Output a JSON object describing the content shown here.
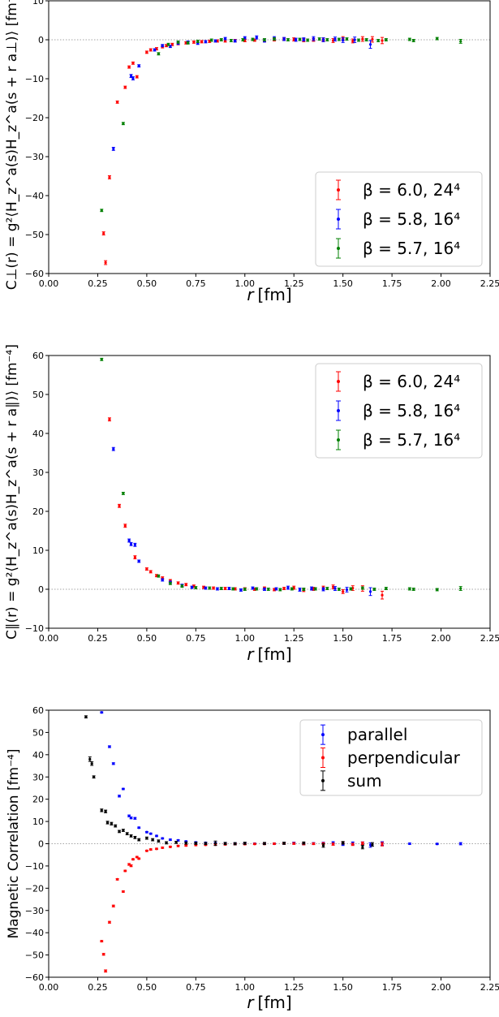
{
  "chart_data": [
    {
      "id": "perp",
      "type": "scatter",
      "xlabel": "r",
      "xlabel_unit": "[fm]",
      "ylabel": "C⊥(r) = g²⟨H_z^a(s)H_z^a(s + r a⊥)⟩ [fm⁻⁴]",
      "xlim": [
        0,
        2.25
      ],
      "ylim": [
        -60,
        10
      ],
      "xticks": [
        "0.00",
        "0.25",
        "0.50",
        "0.75",
        "1.00",
        "1.25",
        "1.50",
        "1.75",
        "2.00",
        "2.25"
      ],
      "yticks": [
        "−60",
        "−50",
        "−40",
        "−30",
        "−20",
        "−10",
        "0",
        "10"
      ],
      "zero_line": true,
      "legend": {
        "placement": "lower-right"
      },
      "series": [
        {
          "name": "β = 6.0, 24⁴",
          "color": "#ff0000",
          "x": [
            0.28,
            0.29,
            0.31,
            0.35,
            0.39,
            0.41,
            0.43,
            0.45,
            0.5,
            0.52,
            0.55,
            0.58,
            0.6,
            0.63,
            0.66,
            0.7,
            0.74,
            0.78,
            0.82,
            0.86,
            0.9,
            0.95,
            1.0,
            1.05,
            1.1,
            1.15,
            1.2,
            1.25,
            1.3,
            1.35,
            1.4,
            1.45,
            1.5,
            1.55,
            1.6,
            1.65,
            1.7
          ],
          "y": [
            -49.7,
            -57.2,
            -35.3,
            -16,
            -12.2,
            -7,
            -6,
            -9.5,
            -3.2,
            -2.6,
            -2.3,
            -1.8,
            -1.5,
            -1.2,
            -1.0,
            -0.8,
            -0.6,
            -0.5,
            -0.4,
            -0.3,
            -0.3,
            -0.2,
            -0.2,
            -0.1,
            -0.1,
            0.0,
            0.1,
            0.1,
            -0.1,
            0.0,
            0.1,
            -0.2,
            0.3,
            -0.3,
            0.2,
            0.1,
            -0.2
          ],
          "err": [
            0.4,
            0.5,
            0.4,
            0.3,
            0.3,
            0.3,
            0.3,
            0.3,
            0.3,
            0.3,
            0.3,
            0.3,
            0.3,
            0.3,
            0.3,
            0.3,
            0.3,
            0.3,
            0.3,
            0.3,
            0.3,
            0.3,
            0.3,
            0.3,
            0.3,
            0.3,
            0.3,
            0.4,
            0.4,
            0.4,
            0.4,
            0.5,
            0.5,
            0.5,
            0.6,
            0.7,
            0.8
          ]
        },
        {
          "name": "β = 5.8, 16⁴",
          "color": "#0000ff",
          "x": [
            0.33,
            0.42,
            0.43,
            0.46,
            0.54,
            0.58,
            0.62,
            0.66,
            0.71,
            0.76,
            0.8,
            0.85,
            0.9,
            0.95,
            1.0,
            1.06,
            1.1,
            1.15,
            1.2,
            1.26,
            1.3,
            1.35,
            1.4,
            1.46,
            1.5,
            1.56,
            1.64
          ],
          "y": [
            -28,
            -9.3,
            -9.9,
            -6.7,
            -2.6,
            -1.5,
            -1.7,
            -0.9,
            -0.6,
            -0.9,
            -0.5,
            -0.3,
            0.3,
            -0.3,
            0.5,
            0.6,
            -0.2,
            0.4,
            0.2,
            0.0,
            0.1,
            0.3,
            0.0,
            0.2,
            -0.1,
            0.0,
            -1.2
          ],
          "err": [
            0.4,
            0.4,
            0.4,
            0.3,
            0.3,
            0.3,
            0.3,
            0.3,
            0.3,
            0.3,
            0.3,
            0.3,
            0.3,
            0.3,
            0.3,
            0.4,
            0.4,
            0.4,
            0.4,
            0.4,
            0.4,
            0.5,
            0.5,
            0.5,
            0.6,
            0.7,
            1.0
          ]
        },
        {
          "name": "β = 5.7, 16⁴",
          "color": "#008000",
          "x": [
            0.27,
            0.38,
            0.56,
            0.61,
            0.66,
            0.71,
            0.76,
            0.83,
            0.88,
            0.93,
            0.99,
            1.04,
            1.1,
            1.15,
            1.22,
            1.28,
            1.32,
            1.38,
            1.42,
            1.48,
            1.52,
            1.58,
            1.62,
            1.68,
            1.72,
            1.84,
            1.86,
            1.98,
            2.1
          ],
          "y": [
            -43.8,
            -21.5,
            -3.6,
            -1.2,
            -0.6,
            -0.8,
            -0.4,
            -0.1,
            0.0,
            -0.2,
            0.0,
            0.1,
            0.0,
            0.2,
            0.0,
            0.1,
            -0.1,
            0.2,
            0.0,
            0.1,
            0.2,
            -0.1,
            0.0,
            -0.2,
            0.0,
            0.1,
            -0.2,
            0.3,
            -0.4
          ],
          "err": [
            0.3,
            0.3,
            0.3,
            0.3,
            0.3,
            0.3,
            0.3,
            0.3,
            0.3,
            0.3,
            0.3,
            0.3,
            0.3,
            0.3,
            0.3,
            0.3,
            0.3,
            0.3,
            0.3,
            0.3,
            0.3,
            0.3,
            0.3,
            0.3,
            0.3,
            0.3,
            0.3,
            0.3,
            0.5
          ]
        }
      ]
    },
    {
      "id": "par",
      "type": "scatter",
      "xlabel": "r",
      "xlabel_unit": "[fm]",
      "ylabel": "C∥(r) = g²⟨H_z^a(s)H_z^a(s + r a∥)⟩ [fm⁻⁴]",
      "xlim": [
        0,
        2.25
      ],
      "ylim": [
        -10,
        60
      ],
      "xticks": [
        "0.00",
        "0.25",
        "0.50",
        "0.75",
        "1.00",
        "1.25",
        "1.50",
        "1.75",
        "2.00",
        "2.25"
      ],
      "yticks": [
        "−10",
        "0",
        "10",
        "20",
        "30",
        "40",
        "50",
        "60"
      ],
      "zero_line": true,
      "legend": {
        "placement": "upper-right"
      },
      "series": [
        {
          "name": "β = 6.0, 24⁴",
          "color": "#ff0000",
          "x": [
            0.31,
            0.36,
            0.39,
            0.44,
            0.5,
            0.52,
            0.55,
            0.58,
            0.62,
            0.66,
            0.7,
            0.74,
            0.79,
            0.84,
            0.9,
            0.95,
            1.0,
            1.05,
            1.1,
            1.15,
            1.2,
            1.25,
            1.3,
            1.35,
            1.4,
            1.45,
            1.5,
            1.55,
            1.6,
            1.7
          ],
          "y": [
            43.6,
            21.4,
            16.3,
            8.2,
            5.2,
            4.5,
            3.5,
            2.9,
            2.2,
            1.6,
            1.2,
            0.8,
            0.5,
            0.3,
            0.2,
            0.1,
            0.1,
            0.0,
            0.3,
            -0.1,
            0.2,
            0.4,
            -0.2,
            0.1,
            0.4,
            0.6,
            -0.6,
            0.3,
            0.2,
            -1.5
          ],
          "err": [
            0.4,
            0.4,
            0.4,
            0.4,
            0.3,
            0.3,
            0.3,
            0.3,
            0.3,
            0.3,
            0.3,
            0.3,
            0.3,
            0.3,
            0.3,
            0.3,
            0.3,
            0.3,
            0.3,
            0.3,
            0.3,
            0.4,
            0.4,
            0.4,
            0.4,
            0.5,
            0.5,
            0.6,
            0.7,
            1.0
          ]
        },
        {
          "name": "β = 5.8, 16⁴",
          "color": "#0000ff",
          "x": [
            0.33,
            0.41,
            0.42,
            0.44,
            0.46,
            0.58,
            0.62,
            0.68,
            0.73,
            0.8,
            0.86,
            0.92,
            0.98,
            1.04,
            1.1,
            1.16,
            1.22,
            1.28,
            1.34,
            1.4,
            1.46,
            1.52,
            1.64
          ],
          "y": [
            36,
            12.5,
            11.6,
            11.4,
            7.2,
            2.4,
            1.8,
            1.0,
            0.5,
            0.3,
            0.1,
            0.2,
            -0.2,
            0.3,
            0.0,
            0.1,
            0.4,
            -0.1,
            0.2,
            0.0,
            0.2,
            -0.1,
            -0.6
          ],
          "err": [
            0.4,
            0.4,
            0.4,
            0.4,
            0.3,
            0.3,
            0.3,
            0.3,
            0.3,
            0.3,
            0.3,
            0.3,
            0.3,
            0.3,
            0.3,
            0.3,
            0.4,
            0.4,
            0.4,
            0.4,
            0.5,
            0.6,
            1.0
          ]
        },
        {
          "name": "β = 5.7, 16⁴",
          "color": "#008000",
          "x": [
            0.27,
            0.38,
            0.56,
            0.62,
            0.68,
            0.75,
            0.82,
            0.88,
            0.94,
            1.0,
            1.06,
            1.12,
            1.18,
            1.24,
            1.3,
            1.36,
            1.42,
            1.48,
            1.54,
            1.6,
            1.66,
            1.72,
            1.84,
            1.86,
            1.98,
            2.1
          ],
          "y": [
            59,
            24.6,
            3.4,
            1.5,
            0.8,
            0.4,
            0.3,
            0.2,
            0.1,
            0.0,
            0.1,
            0.0,
            -0.1,
            0.1,
            0.0,
            0.1,
            0.2,
            0.0,
            0.1,
            0.3,
            0.0,
            0.2,
            0.1,
            0.0,
            -0.1,
            0.2
          ],
          "err": [
            0.3,
            0.3,
            0.3,
            0.3,
            0.3,
            0.3,
            0.3,
            0.3,
            0.3,
            0.3,
            0.3,
            0.3,
            0.3,
            0.3,
            0.3,
            0.3,
            0.3,
            0.3,
            0.3,
            0.3,
            0.3,
            0.3,
            0.3,
            0.3,
            0.3,
            0.5
          ]
        }
      ]
    },
    {
      "id": "sum",
      "type": "scatter",
      "xlabel": "r",
      "xlabel_unit": "[fm]",
      "ylabel": "Magnetic Correlation  [fm⁻⁴]",
      "xlim": [
        0,
        2.25
      ],
      "ylim": [
        -60,
        60
      ],
      "xticks": [
        "0.00",
        "0.25",
        "0.50",
        "0.75",
        "1.00",
        "1.25",
        "1.50",
        "1.75",
        "2.00",
        "2.25"
      ],
      "yticks": [
        "−60",
        "−50",
        "−40",
        "−30",
        "−20",
        "−10",
        "0",
        "10",
        "20",
        "30",
        "40",
        "50",
        "60"
      ],
      "zero_line": true,
      "legend": {
        "placement": "upper-right"
      },
      "series": [
        {
          "name": "parallel",
          "color": "#0000ff",
          "x": [
            0.27,
            0.31,
            0.33,
            0.36,
            0.38,
            0.41,
            0.42,
            0.44,
            0.46,
            0.5,
            0.52,
            0.55,
            0.58,
            0.62,
            0.66,
            0.7,
            0.75,
            0.8,
            0.85,
            0.9,
            0.95,
            1.0,
            1.05,
            1.1,
            1.15,
            1.2,
            1.25,
            1.3,
            1.35,
            1.4,
            1.45,
            1.5,
            1.55,
            1.6,
            1.64,
            1.7,
            1.84,
            1.98,
            2.1
          ],
          "y": [
            59,
            43.6,
            36,
            21.4,
            24.6,
            12.5,
            11.6,
            11.4,
            7.2,
            5.2,
            4.5,
            3.5,
            2.4,
            1.8,
            1.5,
            1.0,
            0.6,
            0.4,
            0.3,
            0.2,
            0.1,
            0.1,
            0.0,
            0.1,
            0.0,
            0.2,
            0.3,
            -0.1,
            0.1,
            0.3,
            0.4,
            -0.3,
            0.2,
            0.1,
            -0.6,
            0.1,
            0.0,
            -0.1,
            0.0
          ],
          "err": [
            0.3,
            0.4,
            0.4,
            0.4,
            0.3,
            0.4,
            0.4,
            0.4,
            0.3,
            0.3,
            0.3,
            0.3,
            0.3,
            0.3,
            0.3,
            0.3,
            0.3,
            0.3,
            0.3,
            0.3,
            0.3,
            0.3,
            0.3,
            0.3,
            0.3,
            0.4,
            0.4,
            0.4,
            0.4,
            0.4,
            0.5,
            0.5,
            0.6,
            0.7,
            1.0,
            0.8,
            0.3,
            0.3,
            0.5
          ]
        },
        {
          "name": "perpendicular",
          "color": "#ff0000",
          "x": [
            0.27,
            0.28,
            0.29,
            0.31,
            0.33,
            0.35,
            0.38,
            0.39,
            0.41,
            0.42,
            0.43,
            0.45,
            0.46,
            0.5,
            0.52,
            0.55,
            0.58,
            0.62,
            0.66,
            0.7,
            0.75,
            0.8,
            0.85,
            0.9,
            0.95,
            1.0,
            1.05,
            1.1,
            1.15,
            1.2,
            1.25,
            1.3,
            1.35,
            1.4,
            1.45,
            1.5,
            1.55,
            1.6,
            1.7
          ],
          "y": [
            -43.8,
            -49.7,
            -57.2,
            -35.3,
            -28,
            -16,
            -21.5,
            -12.2,
            -9.3,
            -9.9,
            -7,
            -6,
            -6.7,
            -3.2,
            -2.6,
            -2.3,
            -1.8,
            -1.4,
            -1.0,
            -0.8,
            -0.6,
            -0.5,
            -0.4,
            -0.3,
            -0.2,
            -0.2,
            -0.1,
            -0.1,
            0.0,
            0.1,
            0.1,
            -0.1,
            0.0,
            0.1,
            -0.2,
            0.3,
            -0.3,
            0.2,
            -0.2
          ],
          "err": [
            0.3,
            0.4,
            0.5,
            0.4,
            0.4,
            0.3,
            0.3,
            0.3,
            0.4,
            0.4,
            0.3,
            0.3,
            0.3,
            0.3,
            0.3,
            0.3,
            0.3,
            0.3,
            0.3,
            0.3,
            0.3,
            0.3,
            0.3,
            0.3,
            0.3,
            0.3,
            0.3,
            0.3,
            0.3,
            0.3,
            0.4,
            0.4,
            0.4,
            0.4,
            0.5,
            0.5,
            0.5,
            0.6,
            0.8
          ]
        },
        {
          "name": "sum",
          "color": "#000000",
          "x": [
            0.19,
            0.21,
            0.22,
            0.23,
            0.27,
            0.29,
            0.3,
            0.32,
            0.34,
            0.36,
            0.38,
            0.4,
            0.42,
            0.44,
            0.46,
            0.5,
            0.53,
            0.56,
            0.6,
            0.65,
            0.7,
            0.75,
            0.8,
            0.85,
            0.9,
            0.95,
            1.0,
            1.1,
            1.2,
            1.3,
            1.4,
            1.5,
            1.6,
            1.65
          ],
          "y": [
            57,
            38,
            36,
            30,
            15,
            14.5,
            9.5,
            9,
            8,
            5.5,
            6,
            4.5,
            3.5,
            2.8,
            1.8,
            2.5,
            1.8,
            1.2,
            0.4,
            0.6,
            0.3,
            0.2,
            0.1,
            0.2,
            0.1,
            0.0,
            0.2,
            0.1,
            0.2,
            0.3,
            -0.8,
            0.4,
            -1.5,
            -0.3
          ],
          "err": [
            0.5,
            1.0,
            0.8,
            0.5,
            0.6,
            0.6,
            0.6,
            0.6,
            0.5,
            0.5,
            0.5,
            0.5,
            0.5,
            0.5,
            0.5,
            0.5,
            0.5,
            0.5,
            0.5,
            0.5,
            0.5,
            0.5,
            0.5,
            1.0,
            0.5,
            0.5,
            0.5,
            0.5,
            0.5,
            0.5,
            0.8,
            0.6,
            0.8,
            0.8
          ]
        }
      ]
    }
  ]
}
